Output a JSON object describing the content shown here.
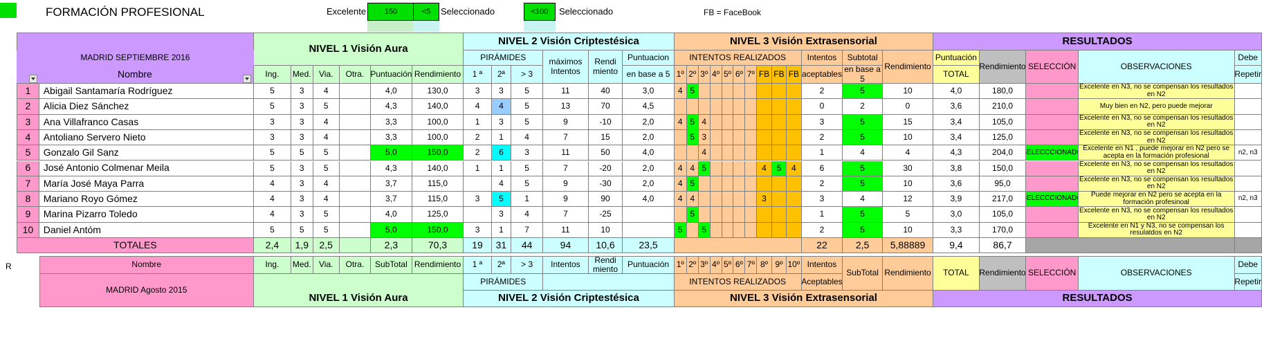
{
  "header": {
    "title": "FORMACIÓN PROFESIONAL",
    "legend_excelente": "Excelente",
    "box_150": "150",
    "box_lt5": "<5",
    "legend_seleccionado_1": "Seleccionado",
    "box_lt100": "<100",
    "legend_seleccionado_2": "Seleccionado",
    "fb_note": "FB = FaceBook"
  },
  "groups": {
    "n1": "NIVEL 1  Visión Aura",
    "n2": "NIVEL 2  Visión  Criptestésica",
    "n3": "NIVEL 3  Visión  Extrasensorial",
    "res": "RESULTADOS"
  },
  "top_headers": {
    "madrid": "MADRID SEPTIEMBRE 2016",
    "nombre": "Nombre",
    "piramides": "PIRÁMIDES",
    "maximos": "máximos Intentos",
    "punt_n2": "Puntuacion",
    "punt_n2_b": "en base a 5",
    "intentos_realizados": "INTENTOS REALIZADOS",
    "intentos_aceptables_a": "Intentos",
    "intentos_aceptables_b": "aceptables",
    "subtotal_a": "Subtotal",
    "subtotal_b": "en base a 5",
    "rendimiento": "Rendimiento",
    "puntuacion_total_a": "Puntuación",
    "puntuacion_total_b": "TOTAL",
    "rendimiento_res": "Rendimiento",
    "seleccion": "SELECCIÓN",
    "observaciones": "OBSERVACIONES",
    "debe_a": "Debe",
    "debe_b": "Repetir",
    "n1_cols": [
      "Ing.",
      "Med.",
      "Via.",
      "Otra.",
      "Puntuación",
      "Rendimiento"
    ],
    "n2_cols": [
      "1 ª",
      "2ª",
      "> 3",
      "",
      "Rendi miento"
    ],
    "n3_cols": [
      "1º",
      "2º",
      "3º",
      "4º",
      "5º",
      "6º",
      "7º",
      "FB",
      "FB",
      "FB"
    ]
  },
  "rows": [
    {
      "num": "1",
      "name": "Abigail Santamaría Rodríguez",
      "n1": [
        "5",
        "3",
        "4",
        "",
        "4,0",
        "130,0"
      ],
      "n2": [
        "3",
        "3",
        "5",
        "11",
        "40",
        "3,0"
      ],
      "n3": [
        "4",
        "5",
        "",
        "",
        "",
        "",
        "",
        "",
        "",
        ""
      ],
      "acep": "2",
      "sub": "5",
      "rend": "10",
      "total": "4,0",
      "rendt": "180,0",
      "sel": "",
      "obs": "Excelente en N3, no se compensan los resultados en N2",
      "rep": ""
    },
    {
      "num": "2",
      "name": "Alicia Diez Sánchez",
      "n1": [
        "5",
        "3",
        "5",
        "",
        "4,3",
        "140,0"
      ],
      "n2": [
        "4",
        "4",
        "5",
        "13",
        "70",
        "4,5"
      ],
      "n3": [
        "",
        "",
        "",
        "",
        "",
        "",
        "",
        "",
        "",
        ""
      ],
      "acep": "0",
      "sub": "2",
      "rend": "0",
      "total": "3,6",
      "rendt": "210,0",
      "sel": "",
      "obs": "Muy bien en N2, pero puede mejorar",
      "rep": ""
    },
    {
      "num": "3",
      "name": "Ana Villafranco Casas",
      "n1": [
        "3",
        "3",
        "4",
        "",
        "3,3",
        "100,0"
      ],
      "n2": [
        "1",
        "3",
        "5",
        "9",
        "-10",
        "2,0"
      ],
      "n3": [
        "4",
        "5",
        "4",
        "",
        "",
        "",
        "",
        "",
        "",
        ""
      ],
      "acep": "3",
      "sub": "5",
      "rend": "15",
      "total": "3,4",
      "rendt": "105,0",
      "sel": "",
      "obs": "Excelente en N3, no se compensan los resultados en N2",
      "rep": ""
    },
    {
      "num": "4",
      "name": "Antoliano Servero Nieto",
      "n1": [
        "3",
        "3",
        "4",
        "",
        "3,3",
        "100,0"
      ],
      "n2": [
        "2",
        "1",
        "4",
        "7",
        "15",
        "2,0"
      ],
      "n3": [
        "",
        "5",
        "3",
        "",
        "",
        "",
        "",
        "",
        "",
        ""
      ],
      "acep": "2",
      "sub": "5",
      "rend": "10",
      "total": "3,4",
      "rendt": "125,0",
      "sel": "",
      "obs": "Excelente en N3, no se compensan los resultados en N2",
      "rep": ""
    },
    {
      "num": "5",
      "name": "Gonzalo Gil Sanz",
      "n1": [
        "5",
        "5",
        "5",
        "",
        "5,0",
        "150,0"
      ],
      "n2": [
        "2",
        "6",
        "3",
        "11",
        "50",
        "4,0"
      ],
      "n3": [
        "",
        "",
        "4",
        "",
        "",
        "",
        "",
        "",
        "",
        ""
      ],
      "acep": "1",
      "sub": "4",
      "rend": "4",
      "total": "4,3",
      "rendt": "204,0",
      "sel": "SELECCCIONADO",
      "obs": "Excelente en N1 ,  puede mejorar en N2 pero se acepta en la formación profesional",
      "rep": "n2, n3"
    },
    {
      "num": "6",
      "name": "José Antonio Colmenar Meila",
      "n1": [
        "5",
        "3",
        "5",
        "",
        "4,3",
        "140,0"
      ],
      "n2": [
        "1",
        "1",
        "5",
        "7",
        "-20",
        "2,0"
      ],
      "n3": [
        "4",
        "4",
        "5",
        "",
        "",
        "",
        "",
        "4",
        "5",
        "4"
      ],
      "acep": "6",
      "sub": "5",
      "rend": "30",
      "total": "3,8",
      "rendt": "150,0",
      "sel": "",
      "obs": "Excelente en N3, no se compensan los resultados en N2",
      "rep": ""
    },
    {
      "num": "7",
      "name": "María José Maya Parra",
      "n1": [
        "4",
        "3",
        "4",
        "",
        "3,7",
        "115,0"
      ],
      "n2": [
        "",
        "4",
        "5",
        "9",
        "-30",
        "2,0"
      ],
      "n3": [
        "4",
        "5",
        "",
        "",
        "",
        "",
        "",
        "",
        "",
        ""
      ],
      "acep": "2",
      "sub": "5",
      "rend": "10",
      "total": "3,6",
      "rendt": "95,0",
      "sel": "",
      "obs": "Excelente en N3, no se compensan los resultados en N2",
      "rep": ""
    },
    {
      "num": "8",
      "name": "Mariano Royo Gómez",
      "n1": [
        "4",
        "3",
        "4",
        "",
        "3,7",
        "115,0"
      ],
      "n2": [
        "3",
        "5",
        "1",
        "9",
        "90",
        "4,0"
      ],
      "n3": [
        "4",
        "4",
        "",
        "",
        "",
        "",
        "",
        "3",
        "",
        ""
      ],
      "acep": "3",
      "sub": "4",
      "rend": "12",
      "total": "3,9",
      "rendt": "217,0",
      "sel": "SELECCCIONADO",
      "obs": "Puede mejorar en N2 pero se acepta en la formación profesinoal",
      "rep": "n2, n3"
    },
    {
      "num": "9",
      "name": "Marina Pizarro Toledo",
      "n1": [
        "4",
        "3",
        "5",
        "",
        "4,0",
        "125,0"
      ],
      "n2": [
        "",
        "3",
        "4",
        "7",
        "-25",
        ""
      ],
      "n3": [
        "",
        "5",
        "",
        "",
        "",
        "",
        "",
        "",
        "",
        ""
      ],
      "acep": "1",
      "sub": "5",
      "rend": "5",
      "total": "3,0",
      "rendt": "105,0",
      "sel": "",
      "obs": "Excelente en N3, no se compensan los resultados en N2",
      "rep": ""
    },
    {
      "num": "10",
      "name": "Daniel Antóm",
      "n1": [
        "5",
        "5",
        "5",
        "",
        "5,0",
        "150,0"
      ],
      "n2": [
        "3",
        "1",
        "7",
        "11",
        "10",
        ""
      ],
      "n3": [
        "5",
        "",
        "5",
        "",
        "",
        "",
        "",
        "",
        "",
        ""
      ],
      "acep": "2",
      "sub": "5",
      "rend": "10",
      "total": "3,3",
      "rendt": "170,0",
      "sel": "",
      "obs": "Excelente en N1 y N3, no se compensan los resulatdos en N2",
      "rep": ""
    }
  ],
  "row_marker": "R",
  "totals": {
    "label": "TOTALES",
    "n1": [
      "2,4",
      "1,9",
      "2,5",
      "",
      "2,3",
      "70,3"
    ],
    "n2": [
      "19",
      "31",
      "44",
      "94",
      "10,6",
      "23,5"
    ],
    "acep": "22",
    "sub": "2,5",
    "rend": "5,88889",
    "total": "9,4",
    "rendt": "86,7"
  },
  "footer": {
    "nombre": "Nombre",
    "madrid": "MADRID Agosto 2015",
    "n1_cols": [
      "Ing.",
      "Med.",
      "Via.",
      "Otra.",
      "SubTotal",
      "Rendimiento"
    ],
    "n2_cols": [
      "1 ª",
      "2ª",
      "> 3",
      "Intentos",
      "Rendi miento",
      "Puntuación"
    ],
    "piramides": "PIRÁMIDES",
    "n3_cols": [
      "1º",
      "2º",
      "3º",
      "4º",
      "5º",
      "6º",
      "7º",
      "8º",
      "9º",
      "10º"
    ],
    "intentos": "Intentos",
    "aceptables": "Aceptables",
    "intentos_realizados": "INTENTOS REALIZADOS",
    "subtotal": "SubTotal",
    "rendimiento": "Rendimiento",
    "total": "TOTAL",
    "rendimiento_res": "Rendimiento",
    "seleccion": "SELECCIÓN",
    "observaciones": "OBSERVACIONES",
    "debe": "Debe",
    "repetir": "Repetir",
    "n1": "NIVEL 1  Visión Aura",
    "n2": "NIVEL 2  Visión  Criptestésica",
    "n3": "NIVEL 3  Visión  Extrasensorial",
    "res": "RESULTADOS"
  },
  "colors": {
    "purple": "#cc99ff",
    "light_green": "#ccffcc",
    "light_cyan": "#ccffff",
    "peach": "#ffcc99",
    "pink": "#ff99cc",
    "yellow": "#ffff99",
    "gray": "#bfbfbf",
    "bright_green": "#00ff00",
    "fb_yellow": "#ffc000",
    "cyan_hi": "#00ffff",
    "blue_hi": "#99ccff"
  }
}
